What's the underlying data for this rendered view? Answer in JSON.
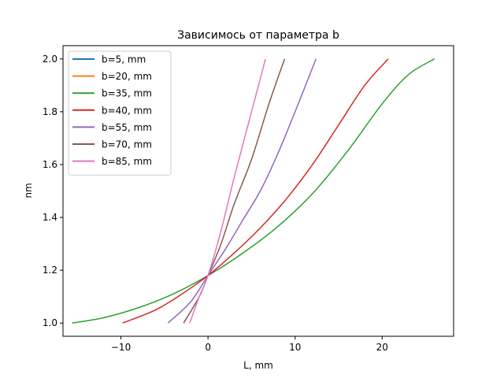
{
  "chart_data": {
    "type": "line",
    "title": "Зависимось от параметра b",
    "xlabel": "L, mm",
    "ylabel": "nm",
    "xlim": [
      -16.65,
      28.2
    ],
    "ylim": [
      0.95,
      2.05
    ],
    "xticks": [
      -10,
      0,
      10,
      20
    ],
    "yticks": [
      1.0,
      1.2,
      1.4,
      1.6,
      1.8,
      2.0
    ],
    "xtick_labels": [
      "−10",
      "0",
      "10",
      "20"
    ],
    "ytick_labels": [
      "1.0",
      "1.2",
      "1.4",
      "1.6",
      "1.8",
      "2.0"
    ],
    "grid": false,
    "legend_position": "top-left",
    "series": [
      {
        "name": "b=5, mm",
        "color": "#1f77b4",
        "points": []
      },
      {
        "name": "b=20, mm",
        "color": "#ff7f0e",
        "points": []
      },
      {
        "name": "b=35, mm",
        "color": "#2ca02c",
        "points": [
          [
            -15.6,
            1.0
          ],
          [
            -12.0,
            1.02
          ],
          [
            -8.0,
            1.058
          ],
          [
            -4.0,
            1.11
          ],
          [
            0.0,
            1.18
          ],
          [
            4.0,
            1.265
          ],
          [
            8.0,
            1.365
          ],
          [
            12.0,
            1.49
          ],
          [
            16.0,
            1.65
          ],
          [
            20.0,
            1.83
          ],
          [
            23.0,
            1.94
          ],
          [
            26.0,
            2.0
          ]
        ]
      },
      {
        "name": "b=40, mm",
        "color": "#d62728",
        "points": [
          [
            -9.8,
            1.0
          ],
          [
            -6.0,
            1.05
          ],
          [
            -3.0,
            1.11
          ],
          [
            0.0,
            1.18
          ],
          [
            3.0,
            1.265
          ],
          [
            6.0,
            1.36
          ],
          [
            9.0,
            1.47
          ],
          [
            12.0,
            1.6
          ],
          [
            15.0,
            1.75
          ],
          [
            18.0,
            1.9
          ],
          [
            20.7,
            2.0
          ]
        ]
      },
      {
        "name": "b=55, mm",
        "color": "#9467bd",
        "points": [
          [
            -4.6,
            1.0
          ],
          [
            -2.0,
            1.08
          ],
          [
            0.0,
            1.18
          ],
          [
            2.0,
            1.28
          ],
          [
            4.0,
            1.39
          ],
          [
            6.0,
            1.5
          ],
          [
            8.0,
            1.64
          ],
          [
            10.0,
            1.8
          ],
          [
            12.4,
            2.0
          ]
        ]
      },
      {
        "name": "b=70, mm",
        "color": "#8c564b",
        "points": [
          [
            -2.8,
            1.0
          ],
          [
            -1.0,
            1.1
          ],
          [
            0.0,
            1.18
          ],
          [
            1.5,
            1.3
          ],
          [
            3.0,
            1.45
          ],
          [
            5.0,
            1.62
          ],
          [
            7.0,
            1.83
          ],
          [
            8.8,
            2.0
          ]
        ]
      },
      {
        "name": "b=85, mm",
        "color": "#e377c2",
        "points": [
          [
            -2.1,
            1.0
          ],
          [
            -1.0,
            1.1
          ],
          [
            0.0,
            1.18
          ],
          [
            1.5,
            1.35
          ],
          [
            3.0,
            1.55
          ],
          [
            5.0,
            1.8
          ],
          [
            6.6,
            2.0
          ]
        ]
      }
    ]
  }
}
